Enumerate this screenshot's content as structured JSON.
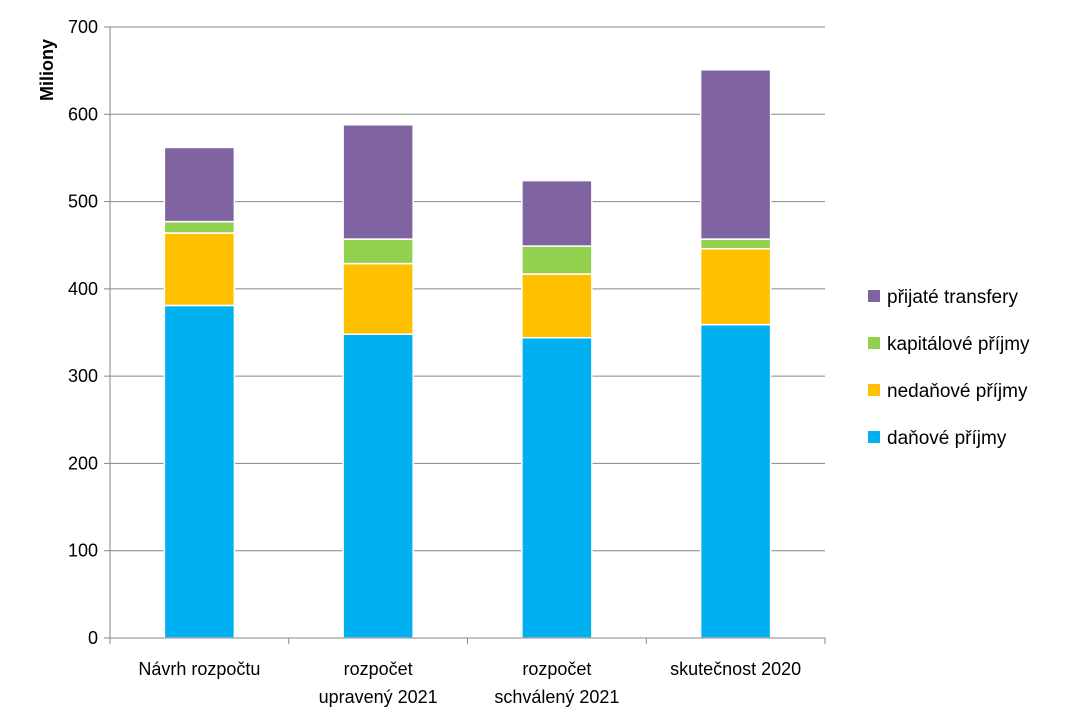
{
  "chart_data": {
    "type": "bar",
    "stacked": true,
    "title": "",
    "xlabel": "",
    "ylabel": "Miliony",
    "ylim": [
      0,
      700
    ],
    "yticks": [
      0,
      100,
      200,
      300,
      400,
      500,
      600,
      700
    ],
    "grid": true,
    "legend_position": "right",
    "categories": [
      [
        "Návrh rozpočtu"
      ],
      [
        "rozpočet",
        "upravený 2021"
      ],
      [
        "rozpočet",
        "schválený 2021"
      ],
      [
        "skutečnost 2020"
      ]
    ],
    "series": [
      {
        "name": "daňové příjmy",
        "color": "#00B0F0",
        "values": [
          381,
          348,
          344,
          359
        ]
      },
      {
        "name": "nedaňové příjmy",
        "color": "#FFC000",
        "values": [
          83,
          81,
          73,
          87
        ]
      },
      {
        "name": "kapitálové příjmy",
        "color": "#92D050",
        "values": [
          13,
          28,
          32,
          11
        ]
      },
      {
        "name": "přijaté transfery",
        "color": "#8064A2",
        "values": [
          85,
          131,
          75,
          194
        ]
      }
    ]
  }
}
